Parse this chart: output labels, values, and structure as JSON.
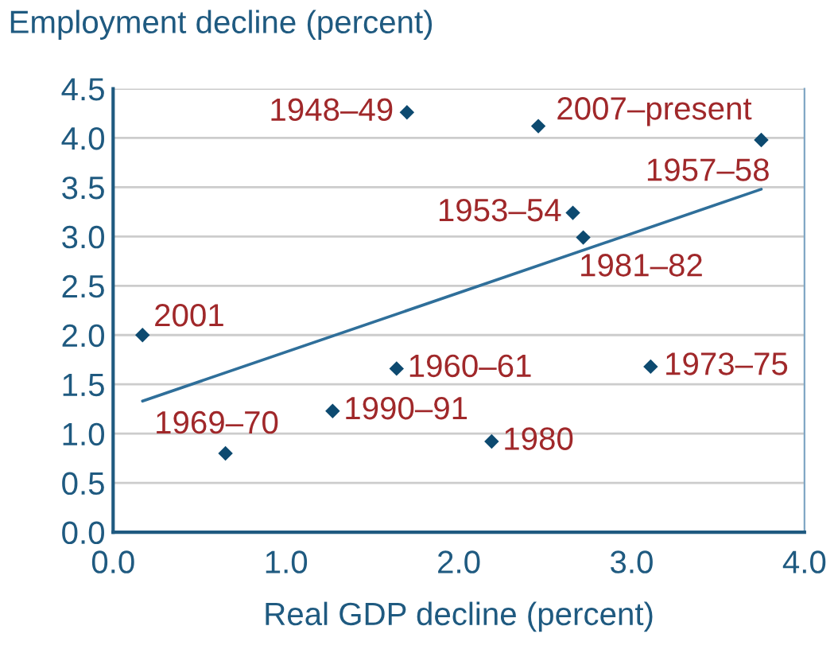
{
  "chart_data": {
    "type": "scatter",
    "title": "Employment decline (percent)",
    "xlabel": "Real GDP decline (percent)",
    "series": [
      {
        "color": "#0d4a70",
        "x": [
          0.17,
          0.65,
          1.27,
          1.64,
          1.7,
          2.46,
          3.75,
          2.66,
          2.72,
          3.11,
          2.19
        ],
        "values": [
          2.0,
          0.8,
          1.23,
          1.66,
          4.26,
          4.12,
          3.98,
          3.24,
          2.99,
          1.68,
          0.92
        ],
        "marker": "diamond"
      },
      {
        "type": "line",
        "color": "#2f6f9a",
        "x": [
          0.17,
          3.75
        ],
        "values": [
          1.33,
          3.48
        ],
        "marker": "none"
      }
    ],
    "annotations": [
      {
        "text": "2001",
        "x": 0.17,
        "y": 2.0
      },
      {
        "text": "1969–70",
        "x": 0.65,
        "y": 0.8
      },
      {
        "text": "1990–91",
        "x": 1.27,
        "y": 1.23
      },
      {
        "text": "1960–61",
        "x": 1.64,
        "y": 1.66
      },
      {
        "text": "1948–49",
        "x": 1.7,
        "y": 4.26
      },
      {
        "text": "2007–present",
        "x": 2.46,
        "y": 4.12
      },
      {
        "text": "1957–58",
        "x": 3.75,
        "y": 3.98
      },
      {
        "text": "1953–54",
        "x": 2.66,
        "y": 3.24
      },
      {
        "text": "1981–82",
        "x": 2.72,
        "y": 2.99
      },
      {
        "text": "1973–75",
        "x": 3.11,
        "y": 1.68
      },
      {
        "text": "1980",
        "x": 2.19,
        "y": 0.92
      }
    ],
    "xlim": [
      0,
      4
    ],
    "ylim": [
      0,
      4.5
    ],
    "xticks": [
      {
        "value": 0,
        "label": "0.0"
      },
      {
        "value": 1,
        "label": "1.0"
      },
      {
        "value": 2,
        "label": "2.0"
      },
      {
        "value": 3,
        "label": "3.0"
      },
      {
        "value": 4,
        "label": "4.0"
      }
    ],
    "yticks": [
      {
        "value": 0,
        "label": "0.0"
      },
      0.5,
      {
        "value": 1,
        "label": "1.0"
      },
      1.5,
      {
        "value": 2,
        "label": "2.0"
      },
      2.5,
      {
        "value": 3,
        "label": "3.0"
      },
      3.5,
      {
        "value": 4,
        "label": "4.0"
      },
      4.5
    ],
    "grid": "y"
  }
}
